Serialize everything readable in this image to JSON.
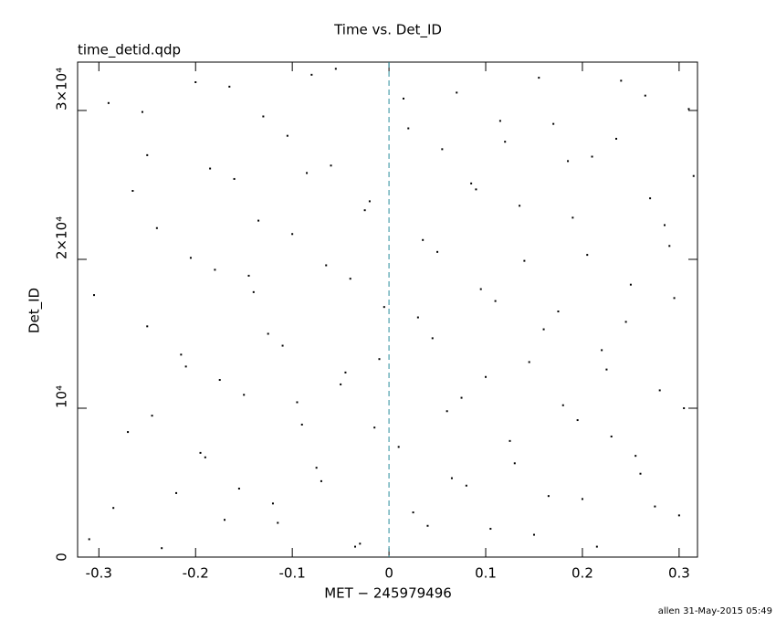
{
  "chart_data": {
    "type": "scatter",
    "title": "Time vs. Det_ID",
    "subtitle": "time_detid.qdp",
    "x_label": "MET − 245979496",
    "y_label": "Det_ID",
    "footer": "allen 31-May-2015 05:49",
    "xlim": [
      -0.322,
      0.319
    ],
    "ylim": [
      0,
      33250
    ],
    "xticks": [
      -0.3,
      -0.2,
      -0.1,
      0,
      0.1,
      0.2,
      0.3
    ],
    "yticks": [
      0,
      {
        "value": 10000,
        "label": "10⁴"
      },
      {
        "value": 20000,
        "label": "2×10⁴"
      },
      {
        "value": 30000,
        "label": "3×10⁴"
      }
    ],
    "series": [
      {
        "color": "#000000",
        "x": [
          -0.31,
          -0.29,
          -0.27,
          -0.25,
          -0.25,
          -0.24,
          -0.22,
          -0.21,
          -0.2,
          -0.19,
          -0.18,
          -0.17,
          -0.16,
          -0.15,
          -0.14,
          -0.13,
          -0.12,
          -0.11,
          -0.1,
          -0.09,
          -0.08,
          -0.07,
          -0.06,
          -0.05,
          -0.04,
          -0.03,
          -0.02,
          -0.01,
          0.01,
          0.02,
          0.03,
          0.04,
          0.05,
          0.06,
          0.07,
          0.08,
          0.09,
          0.1,
          0.11,
          0.12,
          0.13,
          0.14,
          0.15,
          0.16,
          0.17,
          0.18,
          0.19,
          0.2,
          0.21,
          0.22,
          0.23,
          0.24,
          0.25,
          0.26,
          0.27,
          0.28,
          0.29,
          0.3,
          0.31,
          -0.305,
          -0.285,
          -0.265,
          -0.245,
          -0.255,
          -0.235,
          -0.215,
          -0.205,
          -0.195,
          -0.185,
          -0.175,
          -0.165,
          -0.155,
          -0.145,
          -0.135,
          -0.125,
          -0.115,
          -0.105,
          -0.095,
          -0.085,
          -0.075,
          -0.065,
          -0.055,
          -0.045,
          -0.035,
          -0.025,
          -0.015,
          -0.005,
          0.015,
          0.025,
          0.035,
          0.045,
          0.055,
          0.065,
          0.075,
          0.085,
          0.095,
          0.105,
          0.115,
          0.125,
          0.135,
          0.145,
          0.155,
          0.165,
          0.175,
          0.185,
          0.195,
          0.205,
          0.215,
          0.225,
          0.235,
          0.245,
          0.255,
          0.265,
          0.275,
          0.285,
          0.295,
          0.305,
          0.315
        ],
        "values": [
          1200,
          30500,
          8400,
          27000,
          15500,
          22100,
          4300,
          12800,
          31900,
          6700,
          19300,
          2500,
          25400,
          10900,
          17800,
          29600,
          3600,
          14200,
          21700,
          8900,
          32400,
          5100,
          26300,
          11600,
          18700,
          900,
          23900,
          13300,
          7400,
          28800,
          16100,
          2100,
          20500,
          9800,
          31200,
          4800,
          24700,
          12100,
          17200,
          27900,
          6300,
          19900,
          1500,
          15300,
          29100,
          10200,
          22800,
          3900,
          26900,
          13900,
          8100,
          32000,
          18300,
          5600,
          24100,
          11200,
          20900,
          2800,
          30100,
          17600,
          3300,
          24600,
          9500,
          29900,
          600,
          13600,
          20100,
          7000,
          26100,
          11900,
          31600,
          4600,
          18900,
          22600,
          15000,
          2300,
          28300,
          10400,
          25800,
          6000,
          19600,
          32800,
          12400,
          700,
          23300,
          8700,
          16800,
          30800,
          3000,
          21300,
          14700,
          27400,
          5300,
          10700,
          25100,
          18000,
          1900,
          29300,
          7800,
          23600,
          13100,
          32200,
          4100,
          16500,
          26600,
          9200,
          20300,
          700,
          12600,
          28100,
          15800,
          6800,
          31000,
          3400,
          22300,
          17400,
          10000,
          25600
        ]
      }
    ]
  }
}
